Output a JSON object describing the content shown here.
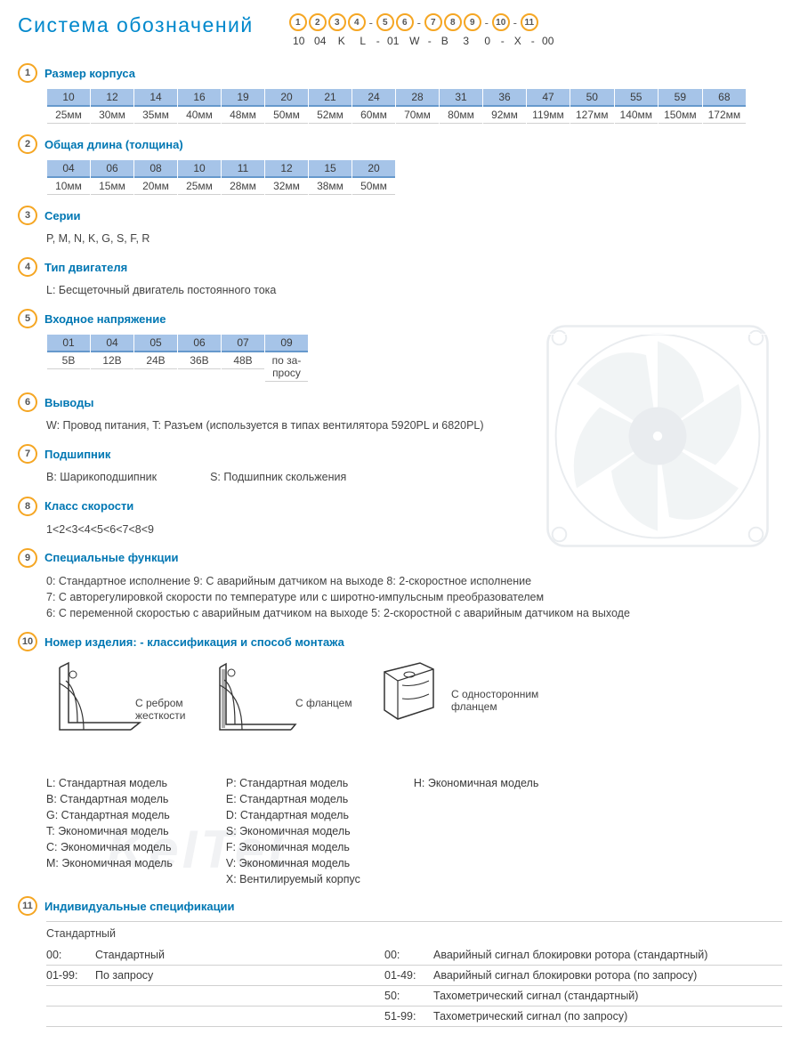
{
  "colors": {
    "title": "#0088cc",
    "circle_border": "#f5a623",
    "section_title": "#0077b3",
    "table_header_bg": "#a6c4e8",
    "table_header_border": "#6699cc",
    "text": "#3a3a3a",
    "divider": "#d0d0d0"
  },
  "title": "Система обозначений",
  "code": {
    "positions": [
      "1",
      "2",
      "3",
      "4",
      "5",
      "6",
      "7",
      "8",
      "9",
      "10",
      "11"
    ],
    "separators_after": [
      3,
      5,
      8,
      9
    ],
    "example": [
      "10",
      "04",
      "K",
      "L",
      "01",
      "W",
      "B",
      "3",
      "0",
      "X",
      "00"
    ]
  },
  "sections": {
    "s1": {
      "num": "1",
      "title": "Размер корпуса",
      "table": {
        "heads": [
          "10",
          "12",
          "14",
          "16",
          "19",
          "20",
          "21",
          "24",
          "28",
          "31",
          "36",
          "47",
          "50",
          "55",
          "59",
          "68"
        ],
        "cells": [
          "25мм",
          "30мм",
          "35мм",
          "40мм",
          "48мм",
          "50мм",
          "52мм",
          "60мм",
          "70мм",
          "80мм",
          "92мм",
          "119мм",
          "127мм",
          "140мм",
          "150мм",
          "172мм"
        ]
      }
    },
    "s2": {
      "num": "2",
      "title": "Общая длина (толщина)",
      "table": {
        "heads": [
          "04",
          "06",
          "08",
          "10",
          "11",
          "12",
          "15",
          "20"
        ],
        "cells": [
          "10мм",
          "15мм",
          "20мм",
          "25мм",
          "28мм",
          "32мм",
          "38мм",
          "50мм"
        ]
      }
    },
    "s3": {
      "num": "3",
      "title": "Серии",
      "body": "P, M, N, K, G, S, F, R"
    },
    "s4": {
      "num": "4",
      "title": "Тип двигателя",
      "body": "L: Бесщеточный двигатель постоянного тока"
    },
    "s5": {
      "num": "5",
      "title": "Входное напряжение",
      "table": {
        "heads": [
          "01",
          "04",
          "05",
          "06",
          "07",
          "09"
        ],
        "cells": [
          "5В",
          "12В",
          "24В",
          "36В",
          "48В",
          "по за-\nпросу"
        ]
      }
    },
    "s6": {
      "num": "6",
      "title": "Выводы",
      "body": "W: Провод питания, T: Разъем (используется в типах вентилятора  5920PL и 6820PL)"
    },
    "s7": {
      "num": "7",
      "title": "Подшипник",
      "body_a": "B: Шарикоподшипник",
      "body_b": "S: Подшипник скольжения"
    },
    "s8": {
      "num": "8",
      "title": "Класс скорости",
      "body": "1<2<3<4<5<6<7<8<9"
    },
    "s9": {
      "num": "9",
      "title": "Специальные функции",
      "lines": [
        "0: Стандартное исполнение   9:  С аварийным датчиком на выходе   8: 2-скоростное исполнение",
        "7: С авторегулировкой скорости по температуре или с широтно-импульсным преобразователем",
        "6: С переменной скоростью с аварийным датчиком на выходе   5: 2-скоростной с аварийным датчиком на выходе"
      ]
    },
    "s10": {
      "num": "10",
      "title": "Номер изделия: - классификация  и способ монтажа",
      "mounts": [
        {
          "label": "С ребром\nжесткости"
        },
        {
          "label": "С фланцем"
        },
        {
          "label": "С односторонним\nфланцем"
        }
      ],
      "model_columns": [
        [
          "L:  Стандартная модель",
          "B:  Стандартная модель",
          "G:  Стандартная модель",
          "T:  Экономичная модель",
          "C:  Экономичная модель",
          "M:  Экономичная модель"
        ],
        [
          "P:  Стандартная модель",
          "E:  Стандартная модель",
          "D:  Стандартная модель",
          "S:  Экономичная модель",
          "F:  Экономичная модель",
          "V:  Экономичная модель",
          "X:  Вентилируемый корпус"
        ],
        [
          "H:  Экономичная модель"
        ]
      ]
    },
    "s11": {
      "num": "11",
      "title": "Индивидуальные спецификации",
      "subtitle": "Стандартный",
      "rows": [
        {
          "l_code": "00:",
          "l_text": "Стандартный",
          "r_code": "00:",
          "r_text": "Аварийный сигнал блокировки ротора (стандартный)"
        },
        {
          "l_code": "01-99:",
          "l_text": "По запросу",
          "r_code": "01-49:",
          "r_text": "Аварийный сигнал блокировки ротора (по запросу)"
        },
        {
          "l_code": "",
          "l_text": "",
          "r_code": "50:",
          "r_text": "Тахометрический сигнал (стандартный)"
        },
        {
          "l_code": "",
          "l_text": "",
          "r_code": "51-99:",
          "r_text": "Тахометрический сигнал (по запросу)"
        }
      ]
    }
  },
  "watermark": "KeITeL"
}
